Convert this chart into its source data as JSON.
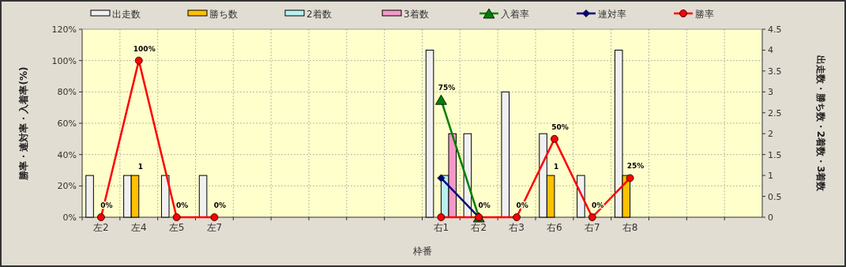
{
  "chart_data": {
    "type": "bar",
    "xlabel": "枠番",
    "ylabel": "勝率・連対率・入着率(%)",
    "y2label": "出走数・勝ち数・2着数・3着数",
    "categories": [
      "左2",
      "左4",
      "左5",
      "左7",
      null,
      null,
      null,
      null,
      null,
      "右1",
      "右2",
      "右3",
      "右6",
      "右7",
      "右8",
      null,
      null,
      null
    ],
    "series": [
      {
        "name": "出走数",
        "type": "bar",
        "axis": "y2",
        "color": "#f0f0f0",
        "values": [
          1,
          1,
          1,
          1,
          null,
          null,
          null,
          null,
          null,
          4,
          2,
          3,
          2,
          1,
          4,
          null,
          null,
          null
        ]
      },
      {
        "name": "勝ち数",
        "axis": "y2",
        "color": "#ffc000",
        "values": [
          0,
          1,
          0,
          0,
          null,
          null,
          null,
          null,
          null,
          0,
          0,
          0,
          1,
          0,
          1,
          null,
          null,
          null
        ],
        "value_labels": [
          null,
          "1",
          null,
          null,
          null,
          null,
          null,
          null,
          null,
          null,
          null,
          null,
          "1",
          null,
          null,
          null,
          null,
          null
        ]
      },
      {
        "name": "2着数",
        "axis": "y2",
        "color": "#b8f0f0",
        "values": [
          0,
          0,
          0,
          0,
          null,
          null,
          null,
          null,
          null,
          1,
          0,
          0,
          0,
          0,
          0,
          null,
          null,
          null
        ]
      },
      {
        "name": "3着数",
        "axis": "y2",
        "color": "#f598c8",
        "values": [
          0,
          0,
          0,
          0,
          null,
          null,
          null,
          null,
          null,
          2,
          0,
          0,
          0,
          0,
          0,
          null,
          null,
          null
        ]
      },
      {
        "name": "入着率",
        "type": "line",
        "axis": "y",
        "color": "#008000",
        "marker": "triangle",
        "values": [
          null,
          null,
          null,
          null,
          null,
          null,
          null,
          null,
          null,
          75,
          0,
          null,
          null,
          null,
          null,
          null,
          null,
          null
        ],
        "value_labels": [
          null,
          null,
          null,
          null,
          null,
          null,
          null,
          null,
          null,
          "75%",
          null,
          null,
          null,
          null,
          null,
          null,
          null,
          null
        ]
      },
      {
        "name": "連対率",
        "type": "line",
        "axis": "y",
        "color": "#000080",
        "marker": "diamond",
        "values": [
          null,
          null,
          null,
          null,
          null,
          null,
          null,
          null,
          null,
          25,
          0,
          null,
          null,
          null,
          null,
          null,
          null,
          null
        ]
      },
      {
        "name": "勝率",
        "type": "line",
        "axis": "y",
        "color": "#ff0000",
        "marker": "circle",
        "values": [
          0,
          100,
          0,
          0,
          null,
          null,
          null,
          null,
          null,
          0,
          0,
          0,
          50,
          0,
          25,
          null,
          null,
          null
        ],
        "value_labels": [
          "0%",
          "100%",
          "0%",
          "0%",
          null,
          null,
          null,
          null,
          null,
          null,
          "0%",
          "0%",
          "50%",
          "0%",
          "25%",
          null,
          null,
          null
        ]
      }
    ],
    "ylim": [
      0,
      120
    ],
    "yticks": [
      {
        "value": 0,
        "label": "0%"
      },
      {
        "value": 20,
        "label": "20%"
      },
      {
        "value": 40,
        "label": "40%"
      },
      {
        "value": 60,
        "label": "60%"
      },
      {
        "value": 80,
        "label": "80%"
      },
      {
        "value": 100,
        "label": "100%"
      },
      {
        "value": 120,
        "label": "120%"
      }
    ],
    "y2lim": [
      0,
      4.5
    ],
    "y2ticks": [
      0,
      0.5,
      1,
      1.5,
      2,
      2.5,
      3,
      3.5,
      4,
      4.5
    ],
    "grid": true,
    "legend": "top"
  }
}
